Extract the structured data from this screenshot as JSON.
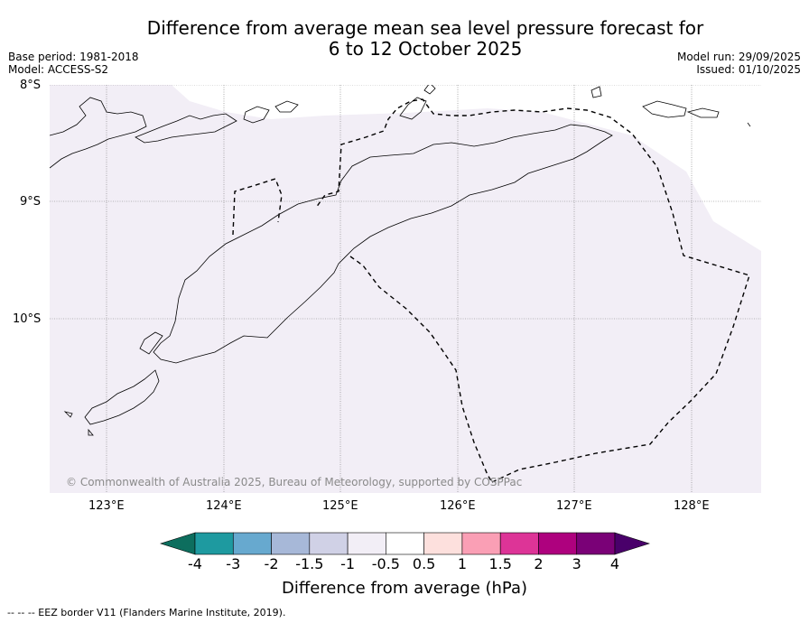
{
  "title_line1": "Difference from average mean sea level pressure forecast for",
  "title_line2": "6 to 12 October 2025",
  "base_period": "Base period: 1981-2018",
  "model": "Model: ACCESS-S2",
  "model_run": "Model run: 29/09/2025",
  "issued": "Issued: 01/10/2025",
  "lat_labels": [
    "8°S",
    "9°S",
    "10°S"
  ],
  "lon_labels": [
    "123°E",
    "124°E",
    "125°E",
    "126°E",
    "127°E",
    "128°E"
  ],
  "credit": "© Commonwealth of Australia 2025, Bureau of Meteorology, supported by COSPPac",
  "colorbar": {
    "title": "Difference from average (hPa)",
    "ticks": [
      "-4",
      "-3",
      "-2",
      "-1.5",
      "-1",
      "-0.5",
      "0.5",
      "1",
      "1.5",
      "2",
      "3",
      "4"
    ],
    "colors": [
      "#0d6e5e",
      "#1e9aa0",
      "#67a9cf",
      "#a7b8d8",
      "#d0d1e6",
      "#f2eef6",
      "#ffffff",
      "#fde0dd",
      "#fa9fb5",
      "#dd3497",
      "#ae017e",
      "#7a0177",
      "#49006a"
    ]
  },
  "map": {
    "land_fill": "#ffffff",
    "anomaly_fill": "#f2eef6"
  },
  "footer": "-- -- -- EEZ border V11 (Flanders Marine Institute, 2019)."
}
